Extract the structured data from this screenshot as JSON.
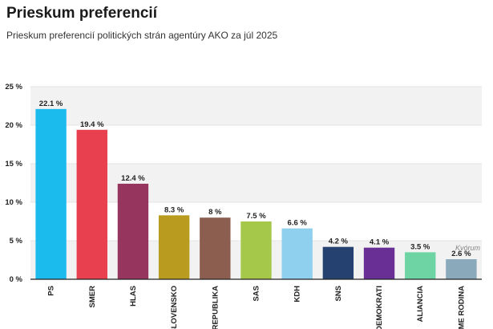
{
  "chart_data": {
    "type": "bar",
    "title": "Prieskum preferencií",
    "subtitle": "Prieskum preferencií politických strán agentúry AKO za júl 2025",
    "categories": [
      "PS",
      "SMER",
      "HLAS",
      "SLOVENSKO",
      "REPUBLIKA",
      "SAS",
      "KDH",
      "SNS",
      "DEMOKRATI",
      "ALIANCIA",
      "SME RODINA"
    ],
    "values": [
      22.1,
      19.4,
      12.4,
      8.3,
      8,
      7.5,
      6.6,
      4.2,
      4.1,
      3.5,
      2.6
    ],
    "value_labels": [
      "22.1 %",
      "19.4 %",
      "12.4 %",
      "8.3 %",
      "8 %",
      "7.5 %",
      "6.6 %",
      "4.2 %",
      "4.1 %",
      "3.5 %",
      "2.6 %"
    ],
    "colors": [
      "#1bbbee",
      "#e8404f",
      "#96365e",
      "#b99b1f",
      "#8b5e4f",
      "#a6c84a",
      "#8fd0ee",
      "#25416f",
      "#6a2f95",
      "#6fd4a3",
      "#8aa9bb"
    ],
    "yticks": [
      "0 %",
      "5 %",
      "10 %",
      "15 %",
      "20 %",
      "25 %"
    ],
    "ylim": [
      0,
      25
    ],
    "threshold": {
      "value": 5,
      "label": "Kvórum"
    },
    "grid": true,
    "legend": "none"
  }
}
